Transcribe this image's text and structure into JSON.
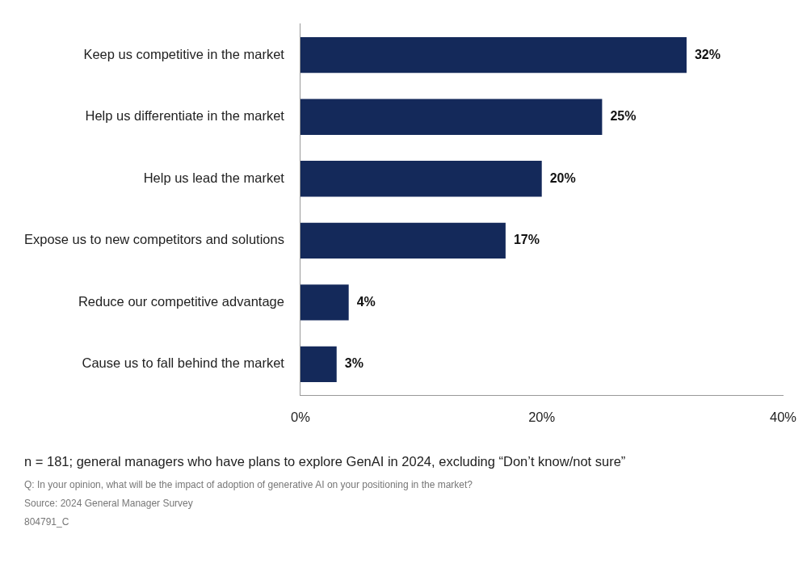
{
  "chart_data": {
    "type": "bar",
    "orientation": "horizontal",
    "categories": [
      "Keep us competitive in the market",
      "Help us differentiate in the market",
      "Help us lead the market",
      "Expose us to new competitors and solutions",
      "Reduce our competitive advantage",
      "Cause us to fall behind the market"
    ],
    "values": [
      32,
      25,
      20,
      17,
      4,
      3
    ],
    "value_labels": [
      "32%",
      "25%",
      "20%",
      "17%",
      "4%",
      "3%"
    ],
    "color": "#14295a",
    "xlim": [
      0,
      40
    ],
    "xticks": [
      {
        "value": 0,
        "label": "0%"
      },
      {
        "value": 20,
        "label": "20%"
      },
      {
        "value": 40,
        "label": "40%"
      }
    ],
    "grid": false,
    "legend": false,
    "annotations": [
      "n = 181; general managers who have plans to explore GenAI in 2024, excluding “Don’t know/not sure”",
      "Q: In your opinion, what will be the impact of adoption of generative AI on your positioning in the market?",
      "Source: 2024 General Manager Survey",
      "804791_C"
    ]
  }
}
